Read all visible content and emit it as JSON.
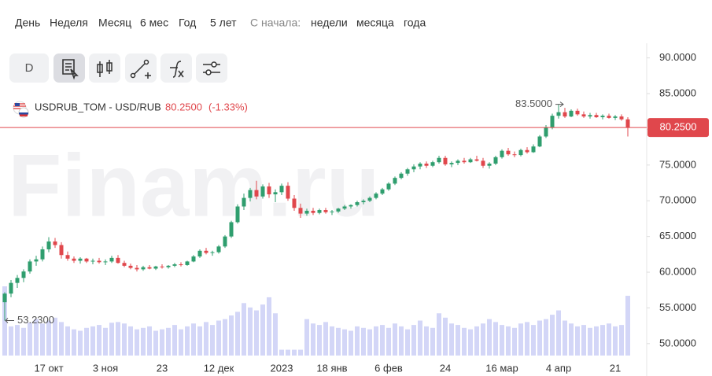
{
  "toolbar": {
    "periods": [
      "День",
      "Неделя",
      "Месяц",
      "6 мес",
      "Год",
      "5 лет"
    ],
    "since_label": "С начала:",
    "since_options": [
      "недели",
      "месяца",
      "года"
    ],
    "interval_button": "D"
  },
  "chart_data": {
    "type": "candlestick",
    "watermark": "Finam.ru",
    "instrument": "USDRUB_TOM - USD/RUB",
    "last": {
      "value": 80.25,
      "label": "80.2500"
    },
    "change": {
      "value": -1.33,
      "label": "(-1.33%)"
    },
    "max_annotation": {
      "value": 83.5,
      "label": "83.5000"
    },
    "min_annotation": {
      "value": 53.23,
      "label": "53.2300"
    },
    "up_color": "#2f9e6e",
    "down_color": "#e0474c",
    "volume_color": "#d3d6f7",
    "last_color": "#e0474c",
    "ylim": [
      48,
      91.5
    ],
    "yticks": [
      {
        "value": 50,
        "label": "50.0000"
      },
      {
        "value": 55,
        "label": "55.0000"
      },
      {
        "value": 60,
        "label": "60.0000"
      },
      {
        "value": 65,
        "label": "65.0000"
      },
      {
        "value": 70,
        "label": "70.0000"
      },
      {
        "value": 75,
        "label": "75.0000"
      },
      {
        "value": 80,
        "label": "80.0000"
      },
      {
        "value": 85,
        "label": "85.0000"
      },
      {
        "value": 90,
        "label": "90.0000"
      }
    ],
    "categories": [
      null,
      null,
      null,
      null,
      null,
      null,
      null,
      "17 окт",
      null,
      null,
      null,
      null,
      null,
      null,
      null,
      null,
      "3 ноя",
      null,
      null,
      null,
      null,
      null,
      null,
      null,
      null,
      "23",
      null,
      null,
      null,
      null,
      null,
      null,
      null,
      null,
      "12 дек",
      null,
      null,
      null,
      null,
      null,
      null,
      null,
      null,
      null,
      "2023",
      null,
      null,
      null,
      null,
      null,
      null,
      null,
      "18 янв",
      null,
      null,
      null,
      null,
      null,
      null,
      null,
      null,
      "6 фев",
      null,
      null,
      null,
      null,
      null,
      null,
      null,
      null,
      "24",
      null,
      null,
      null,
      null,
      null,
      null,
      null,
      null,
      "16 мар",
      null,
      null,
      null,
      null,
      null,
      null,
      null,
      null,
      "4 апр",
      null,
      null,
      null,
      null,
      null,
      null,
      null,
      null,
      "21",
      null,
      null
    ],
    "ohlc": [
      [
        55.8,
        57.2,
        53.23,
        57.0
      ],
      [
        57.0,
        58.9,
        56.5,
        58.5
      ],
      [
        58.5,
        59.6,
        57.8,
        59.2
      ],
      [
        59.2,
        60.4,
        58.6,
        60.1
      ],
      [
        60.1,
        61.8,
        59.8,
        61.5
      ],
      [
        61.5,
        62.3,
        60.9,
        61.8
      ],
      [
        61.8,
        63.6,
        61.5,
        63.2
      ],
      [
        63.2,
        64.9,
        62.8,
        64.3
      ],
      [
        64.3,
        64.8,
        63.4,
        63.8
      ],
      [
        63.8,
        64.2,
        61.9,
        62.4
      ],
      [
        62.4,
        62.9,
        61.6,
        61.9
      ],
      [
        61.9,
        62.2,
        61.3,
        61.6
      ],
      [
        61.6,
        62.1,
        61.2,
        61.9
      ],
      [
        61.9,
        62.0,
        61.3,
        61.5
      ],
      [
        61.5,
        61.9,
        61.1,
        61.6
      ],
      [
        61.6,
        62.0,
        61.2,
        61.4
      ],
      [
        61.4,
        61.8,
        61.0,
        61.5
      ],
      [
        61.5,
        62.3,
        61.3,
        62.0
      ],
      [
        62.0,
        62.4,
        61.2,
        61.3
      ],
      [
        61.3,
        61.6,
        60.7,
        60.9
      ],
      [
        60.9,
        61.2,
        60.4,
        60.6
      ],
      [
        60.6,
        61.0,
        60.1,
        60.4
      ],
      [
        60.4,
        60.9,
        60.2,
        60.7
      ],
      [
        60.7,
        61.0,
        60.4,
        60.5
      ],
      [
        60.5,
        60.9,
        60.3,
        60.8
      ],
      [
        60.8,
        61.1,
        60.5,
        60.7
      ],
      [
        60.7,
        61.0,
        60.5,
        60.9
      ],
      [
        60.9,
        61.3,
        60.7,
        61.1
      ],
      [
        61.1,
        61.4,
        60.8,
        61.0
      ],
      [
        61.0,
        61.6,
        60.9,
        61.5
      ],
      [
        61.5,
        62.4,
        61.4,
        62.2
      ],
      [
        62.2,
        63.2,
        62.0,
        63.0
      ],
      [
        63.0,
        63.4,
        62.5,
        62.7
      ],
      [
        62.7,
        63.0,
        62.3,
        62.8
      ],
      [
        62.8,
        63.8,
        62.6,
        63.6
      ],
      [
        63.6,
        65.2,
        63.4,
        65.0
      ],
      [
        65.0,
        67.2,
        64.8,
        67.0
      ],
      [
        67.0,
        69.5,
        66.8,
        69.2
      ],
      [
        69.2,
        71.0,
        68.7,
        70.4
      ],
      [
        70.4,
        71.8,
        69.9,
        71.5
      ],
      [
        71.5,
        72.8,
        70.2,
        70.6
      ],
      [
        70.6,
        72.3,
        70.3,
        72.0
      ],
      [
        72.0,
        72.5,
        70.4,
        70.9
      ],
      [
        70.9,
        71.6,
        69.8,
        71.2
      ],
      [
        71.2,
        72.4,
        70.8,
        72.1
      ],
      [
        72.1,
        72.6,
        70.0,
        70.3
      ],
      [
        70.3,
        70.8,
        68.6,
        69.0
      ],
      [
        69.0,
        69.6,
        67.6,
        68.2
      ],
      [
        68.2,
        68.9,
        67.9,
        68.6
      ],
      [
        68.6,
        69.0,
        68.0,
        68.3
      ],
      [
        68.3,
        68.9,
        68.1,
        68.7
      ],
      [
        68.7,
        69.0,
        68.2,
        68.4
      ],
      [
        68.4,
        68.7,
        68.0,
        68.5
      ],
      [
        68.5,
        69.0,
        68.3,
        68.9
      ],
      [
        68.9,
        69.4,
        68.7,
        69.2
      ],
      [
        69.2,
        69.5,
        68.9,
        69.4
      ],
      [
        69.4,
        70.0,
        69.2,
        69.8
      ],
      [
        69.8,
        70.2,
        69.5,
        70.0
      ],
      [
        70.0,
        70.6,
        69.8,
        70.4
      ],
      [
        70.4,
        71.2,
        70.2,
        71.0
      ],
      [
        71.0,
        71.8,
        70.8,
        71.6
      ],
      [
        71.6,
        72.6,
        71.4,
        72.4
      ],
      [
        72.4,
        73.4,
        72.2,
        73.2
      ],
      [
        73.2,
        74.0,
        73.0,
        73.8
      ],
      [
        73.8,
        74.6,
        73.5,
        74.4
      ],
      [
        74.4,
        75.1,
        74.0,
        74.8
      ],
      [
        74.8,
        75.4,
        74.4,
        75.2
      ],
      [
        75.2,
        75.5,
        74.6,
        74.9
      ],
      [
        74.9,
        75.6,
        74.7,
        75.4
      ],
      [
        75.4,
        76.3,
        75.2,
        76.0
      ],
      [
        76.0,
        76.3,
        74.9,
        75.1
      ],
      [
        75.1,
        75.5,
        74.7,
        75.3
      ],
      [
        75.3,
        75.8,
        75.0,
        75.6
      ],
      [
        75.6,
        76.0,
        75.2,
        75.4
      ],
      [
        75.4,
        76.0,
        75.3,
        75.8
      ],
      [
        75.8,
        76.3,
        75.5,
        75.6
      ],
      [
        75.6,
        76.0,
        74.6,
        74.9
      ],
      [
        74.9,
        75.4,
        74.5,
        75.2
      ],
      [
        75.2,
        76.3,
        75.0,
        76.1
      ],
      [
        76.1,
        77.2,
        75.9,
        77.0
      ],
      [
        77.0,
        77.4,
        76.3,
        76.5
      ],
      [
        76.5,
        76.9,
        76.1,
        76.4
      ],
      [
        76.4,
        77.3,
        76.2,
        77.1
      ],
      [
        77.1,
        77.5,
        76.6,
        76.8
      ],
      [
        76.8,
        77.9,
        76.7,
        77.6
      ],
      [
        77.6,
        79.2,
        77.5,
        79.0
      ],
      [
        79.0,
        80.6,
        78.8,
        80.3
      ],
      [
        80.3,
        82.2,
        80.0,
        81.9
      ],
      [
        81.9,
        83.5,
        81.5,
        82.4
      ],
      [
        82.4,
        83.0,
        81.6,
        81.8
      ],
      [
        81.8,
        82.8,
        81.7,
        82.6
      ],
      [
        82.6,
        82.9,
        81.9,
        82.1
      ],
      [
        82.1,
        82.5,
        81.6,
        81.8
      ],
      [
        81.8,
        82.3,
        81.5,
        82.0
      ],
      [
        82.0,
        82.3,
        81.6,
        81.7
      ],
      [
        81.7,
        82.1,
        81.4,
        81.9
      ],
      [
        81.9,
        82.2,
        81.5,
        81.6
      ],
      [
        81.6,
        82.0,
        81.3,
        81.8
      ],
      [
        81.8,
        82.1,
        81.2,
        81.4
      ],
      [
        81.4,
        81.7,
        79.0,
        80.25
      ]
    ],
    "volume": [
      95,
      40,
      42,
      38,
      45,
      50,
      44,
      48,
      52,
      46,
      40,
      36,
      34,
      38,
      40,
      42,
      38,
      45,
      46,
      44,
      40,
      36,
      38,
      40,
      34,
      36,
      38,
      42,
      36,
      40,
      44,
      40,
      46,
      42,
      48,
      50,
      55,
      60,
      72,
      66,
      62,
      70,
      80,
      58,
      8,
      8,
      8,
      8,
      50,
      44,
      42,
      46,
      40,
      38,
      36,
      34,
      40,
      38,
      36,
      40,
      42,
      38,
      44,
      40,
      36,
      42,
      48,
      40,
      38,
      58,
      52,
      44,
      42,
      38,
      36,
      40,
      44,
      50,
      46,
      42,
      40,
      38,
      44,
      46,
      42,
      48,
      50,
      56,
      62,
      48,
      44,
      40,
      42,
      38,
      40,
      42,
      44,
      40,
      42,
      82
    ]
  }
}
